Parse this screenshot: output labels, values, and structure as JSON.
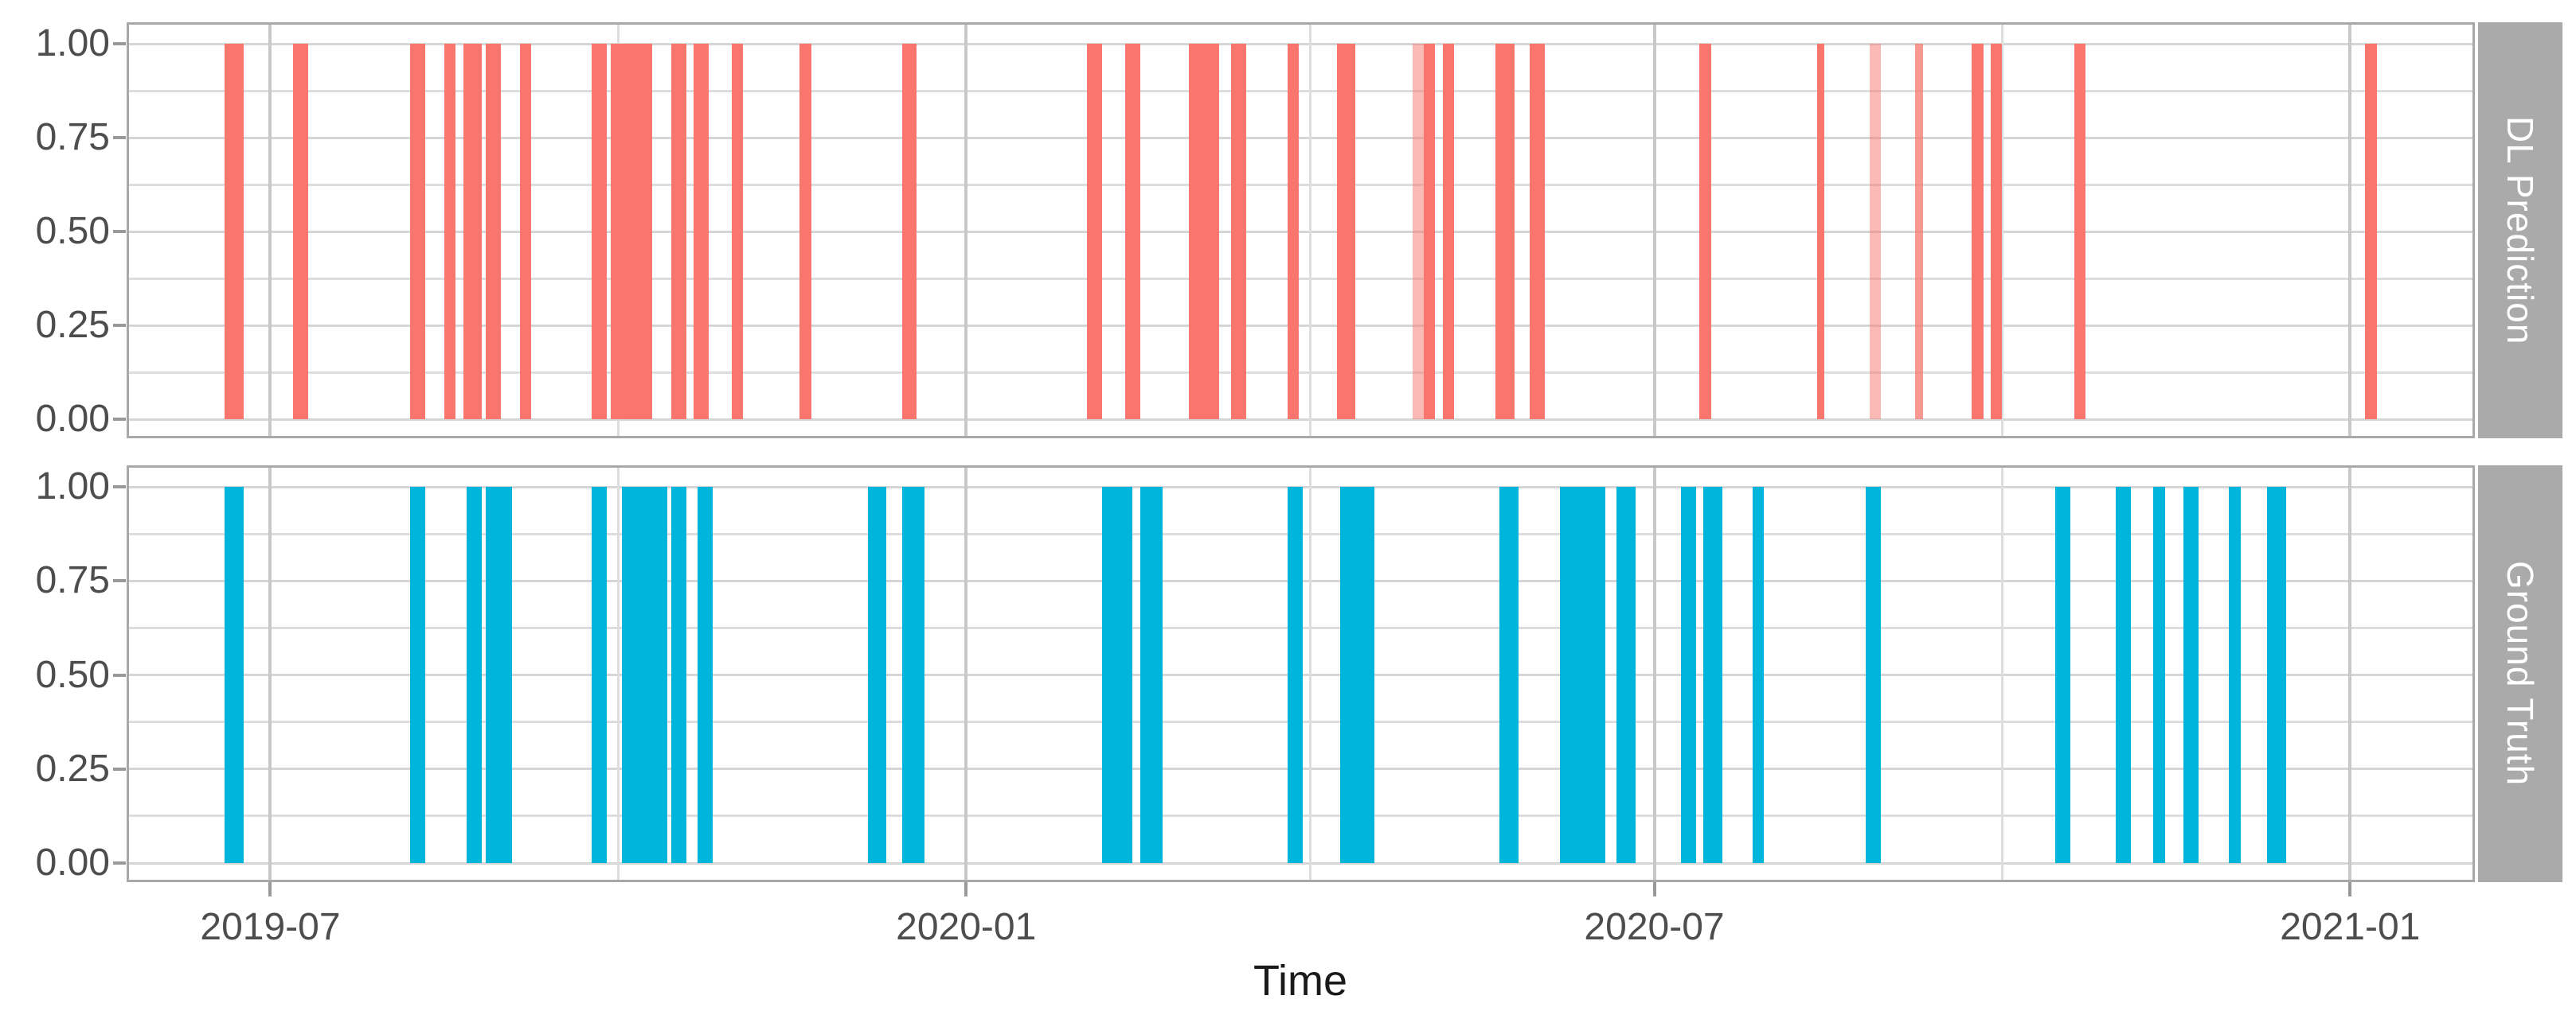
{
  "chart_data": {
    "type": "bar",
    "subtype": "faceted-binary-event-timeline",
    "title": "",
    "xlabel": "Time",
    "ylabel": "",
    "legend_position": "none",
    "facets": "rows",
    "grid": "on",
    "x_domain": [
      "2019-05-24",
      "2021-02-03"
    ],
    "x_major_ticks": [
      {
        "label": "2019-07",
        "date": "2019-07-01"
      },
      {
        "label": "2020-01",
        "date": "2020-01-01"
      },
      {
        "label": "2020-07",
        "date": "2020-07-01"
      },
      {
        "label": "2021-01",
        "date": "2021-01-01"
      }
    ],
    "x_minor_gridlines": [
      "2019-10-01",
      "2020-04-01",
      "2020-10-01"
    ],
    "y_ticks": [
      {
        "label": "1.00",
        "value": 1
      },
      {
        "label": "0.75",
        "value": 0.75
      },
      {
        "label": "0.50",
        "value": 0.5
      },
      {
        "label": "0.25",
        "value": 0.25
      },
      {
        "label": "0.00",
        "value": 0
      }
    ],
    "y_gridlines": [
      0,
      0.125,
      0.25,
      0.375,
      0.5,
      0.625,
      0.75,
      0.875,
      1
    ],
    "ylim": [
      0,
      1
    ],
    "series": [
      {
        "name": "DL Prediction",
        "color": "#F8766D",
        "value": 1,
        "intervals": [
          {
            "start": "2019-06-19",
            "end": "2019-06-24"
          },
          {
            "start": "2019-07-07",
            "end": "2019-07-11"
          },
          {
            "start": "2019-08-07",
            "end": "2019-08-11"
          },
          {
            "start": "2019-08-16",
            "end": "2019-08-19"
          },
          {
            "start": "2019-08-21",
            "end": "2019-08-26"
          },
          {
            "start": "2019-08-27",
            "end": "2019-08-31"
          },
          {
            "start": "2019-09-05",
            "end": "2019-09-08"
          },
          {
            "start": "2019-09-24",
            "end": "2019-09-28"
          },
          {
            "start": "2019-09-29",
            "end": "2019-10-10"
          },
          {
            "start": "2019-10-15",
            "end": "2019-10-19"
          },
          {
            "start": "2019-10-21",
            "end": "2019-10-25"
          },
          {
            "start": "2019-10-31",
            "end": "2019-11-03"
          },
          {
            "start": "2019-11-18",
            "end": "2019-11-21"
          },
          {
            "start": "2019-12-15",
            "end": "2019-12-19"
          },
          {
            "start": "2020-02-02",
            "end": "2020-02-06"
          },
          {
            "start": "2020-02-12",
            "end": "2020-02-16"
          },
          {
            "start": "2020-02-29",
            "end": "2020-03-08"
          },
          {
            "start": "2020-03-11",
            "end": "2020-03-15"
          },
          {
            "start": "2020-03-26",
            "end": "2020-03-29"
          },
          {
            "start": "2020-04-08",
            "end": "2020-04-13"
          },
          {
            "start": "2020-04-28",
            "end": "2020-05-01",
            "alpha": 0.5
          },
          {
            "start": "2020-05-01",
            "end": "2020-05-04"
          },
          {
            "start": "2020-05-06",
            "end": "2020-05-09"
          },
          {
            "start": "2020-05-20",
            "end": "2020-05-25"
          },
          {
            "start": "2020-05-29",
            "end": "2020-06-02"
          },
          {
            "start": "2020-07-13",
            "end": "2020-07-16"
          },
          {
            "start": "2020-08-13",
            "end": "2020-08-15"
          },
          {
            "start": "2020-08-27",
            "end": "2020-08-30",
            "alpha": 0.5
          },
          {
            "start": "2020-09-08",
            "end": "2020-09-10",
            "alpha": 0.75
          },
          {
            "start": "2020-09-23",
            "end": "2020-09-26"
          },
          {
            "start": "2020-09-28",
            "end": "2020-10-01"
          },
          {
            "start": "2020-10-20",
            "end": "2020-10-23"
          },
          {
            "start": "2021-01-05",
            "end": "2021-01-08"
          }
        ]
      },
      {
        "name": "Ground Truth",
        "color": "#00B5DC",
        "value": 1,
        "intervals": [
          {
            "start": "2019-06-19",
            "end": "2019-06-24"
          },
          {
            "start": "2019-08-07",
            "end": "2019-08-11"
          },
          {
            "start": "2019-08-22",
            "end": "2019-08-26"
          },
          {
            "start": "2019-08-27",
            "end": "2019-09-03"
          },
          {
            "start": "2019-09-24",
            "end": "2019-09-28"
          },
          {
            "start": "2019-10-02",
            "end": "2019-10-14"
          },
          {
            "start": "2019-10-15",
            "end": "2019-10-19"
          },
          {
            "start": "2019-10-22",
            "end": "2019-10-26"
          },
          {
            "start": "2019-12-06",
            "end": "2019-12-11"
          },
          {
            "start": "2019-12-15",
            "end": "2019-12-21"
          },
          {
            "start": "2020-02-06",
            "end": "2020-02-14"
          },
          {
            "start": "2020-02-16",
            "end": "2020-02-22"
          },
          {
            "start": "2020-03-26",
            "end": "2020-03-30"
          },
          {
            "start": "2020-04-09",
            "end": "2020-04-18"
          },
          {
            "start": "2020-05-21",
            "end": "2020-05-26"
          },
          {
            "start": "2020-06-06",
            "end": "2020-06-18"
          },
          {
            "start": "2020-06-21",
            "end": "2020-06-26"
          },
          {
            "start": "2020-07-08",
            "end": "2020-07-12"
          },
          {
            "start": "2020-07-14",
            "end": "2020-07-19"
          },
          {
            "start": "2020-07-27",
            "end": "2020-07-30"
          },
          {
            "start": "2020-08-26",
            "end": "2020-08-30"
          },
          {
            "start": "2020-10-15",
            "end": "2020-10-19"
          },
          {
            "start": "2020-10-31",
            "end": "2020-11-04"
          },
          {
            "start": "2020-11-10",
            "end": "2020-11-13"
          },
          {
            "start": "2020-11-18",
            "end": "2020-11-22"
          },
          {
            "start": "2020-11-30",
            "end": "2020-12-03"
          },
          {
            "start": "2020-12-10",
            "end": "2020-12-15"
          }
        ]
      }
    ]
  },
  "colors": {
    "background": "#FFFFFF",
    "panel_border": "#A8A8A8",
    "strip_background": "#AAAAAA",
    "strip_text": "#FFFFFF",
    "gridline": "#DDDDDD",
    "gridline_major_x": "#C8C8C8",
    "axis_text": "#4D4D4D",
    "axis_title": "#1A1A1A",
    "tick_mark": "#999999",
    "prediction_bar": "#F8766D",
    "ground_truth_bar": "#00B5DC"
  }
}
